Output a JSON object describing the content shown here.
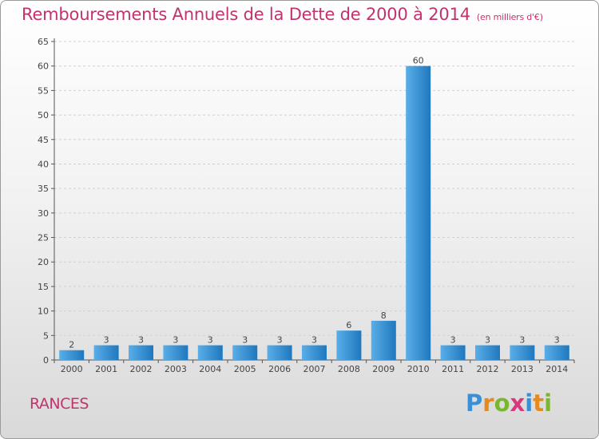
{
  "title": "Remboursements Annuels de la Dette de 2000 à 2014",
  "subtitle": "(en milliers d'€)",
  "commune": "RANCES",
  "logo": {
    "text": "Proxiti",
    "letter_colors": [
      "#3a8fd6",
      "#e58a1f",
      "#7ab62f",
      "#d63a7a",
      "#3a8fd6",
      "#e58a1f",
      "#7ab62f"
    ]
  },
  "colors": {
    "title": "#c2336e",
    "bar_light": "#5aaee8",
    "bar_dark": "#1f78be",
    "axis": "#555555",
    "grid": "#d0d0d0"
  },
  "chart_data": {
    "type": "bar",
    "title": "Remboursements Annuels de la Dette de 2000 à 2014",
    "subtitle": "(en milliers d'€)",
    "xlabel": "",
    "ylabel": "",
    "categories": [
      "2000",
      "2001",
      "2002",
      "2003",
      "2004",
      "2005",
      "2006",
      "2007",
      "2008",
      "2009",
      "2010",
      "2011",
      "2012",
      "2013",
      "2014"
    ],
    "values": [
      2,
      3,
      3,
      3,
      3,
      3,
      3,
      3,
      6,
      8,
      60,
      3,
      3,
      3,
      3
    ],
    "data_labels": [
      "2",
      "3",
      "3",
      "3",
      "3",
      "3",
      "3",
      "3",
      "6",
      "8",
      "60",
      "3",
      "3",
      "3",
      "3"
    ],
    "ylim": [
      0,
      65
    ],
    "yticks": [
      0,
      5,
      10,
      15,
      20,
      25,
      30,
      35,
      40,
      45,
      50,
      55,
      60,
      65
    ],
    "grid": true,
    "legend": "none"
  }
}
